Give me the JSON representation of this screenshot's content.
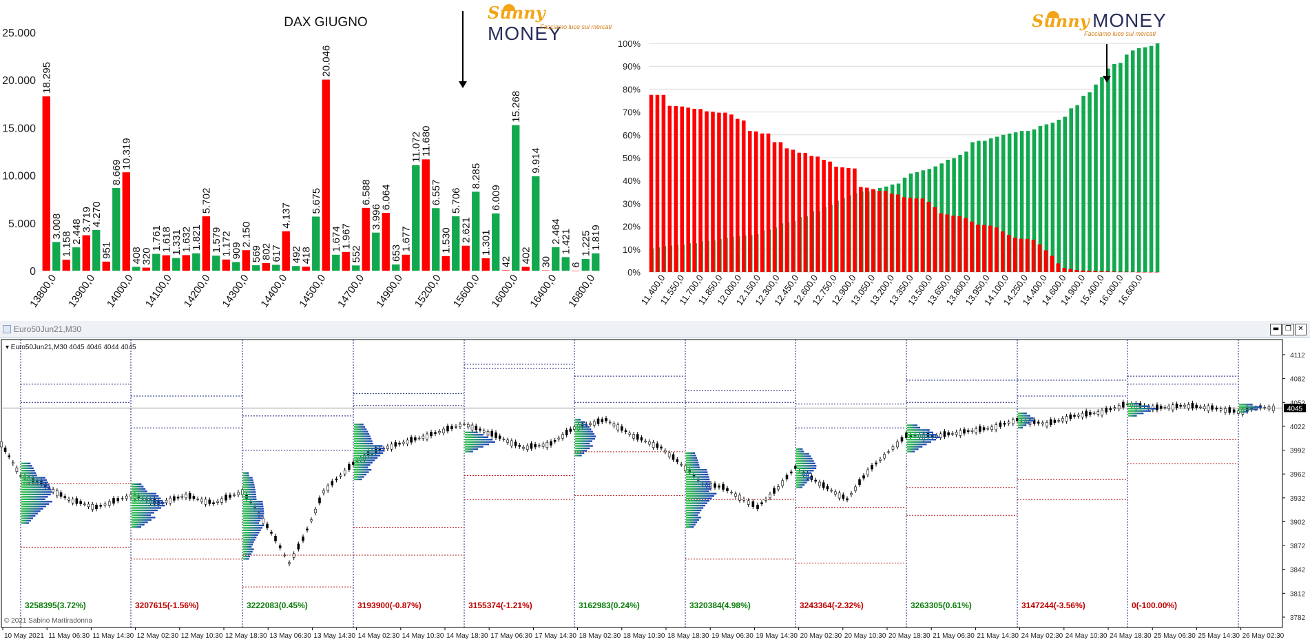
{
  "bar_chart": {
    "title": "DAX GIUGNO",
    "logo": {
      "brand_a": "Sunny",
      "brand_b": "MONEY",
      "tagline": "Facciamo luce sui mercati"
    },
    "chart_data": {
      "type": "bar",
      "title": "DAX GIUGNO",
      "ylim": [
        0,
        25000
      ],
      "yticks": [
        "0",
        "5.000",
        "10.000",
        "15.000",
        "20.000",
        "25.000"
      ],
      "ytick_values": [
        0,
        5000,
        10000,
        15000,
        20000,
        25000
      ],
      "xtick_labels": [
        "13800,0",
        "13900,0",
        "14000,0",
        "14100,0",
        "14200,0",
        "14300,0",
        "14400,0",
        "14500,0",
        "14700,0",
        "14900,0",
        "15200,0",
        "15600,0",
        "16000,0",
        "16400,0",
        "16800,0"
      ],
      "colors": {
        "put": "#ff0000",
        "call": "#12a84e"
      },
      "series": [
        {
          "color": "#ff0000",
          "label": "18.295",
          "value": 18295
        },
        {
          "color": "#12a84e",
          "label": "3.008",
          "value": 3008
        },
        {
          "color": "#ff0000",
          "label": "1.158",
          "value": 1158
        },
        {
          "color": "#12a84e",
          "label": "2.448",
          "value": 2448
        },
        {
          "color": "#ff0000",
          "label": "3.719",
          "value": 3719
        },
        {
          "color": "#12a84e",
          "label": "4.270",
          "value": 4270
        },
        {
          "color": "#ff0000",
          "label": "951",
          "value": 951
        },
        {
          "color": "#12a84e",
          "label": "8.669",
          "value": 8669
        },
        {
          "color": "#ff0000",
          "label": "10.319",
          "value": 10319
        },
        {
          "color": "#12a84e",
          "label": "408",
          "value": 408
        },
        {
          "color": "#ff0000",
          "label": "320",
          "value": 320
        },
        {
          "color": "#12a84e",
          "label": "1.761",
          "value": 1761
        },
        {
          "color": "#ff0000",
          "label": "1.618",
          "value": 1618
        },
        {
          "color": "#12a84e",
          "label": "1.331",
          "value": 1331
        },
        {
          "color": "#ff0000",
          "label": "1.632",
          "value": 1632
        },
        {
          "color": "#12a84e",
          "label": "1.821",
          "value": 1821
        },
        {
          "color": "#ff0000",
          "label": "5.702",
          "value": 5702
        },
        {
          "color": "#12a84e",
          "label": "1.579",
          "value": 1579
        },
        {
          "color": "#ff0000",
          "label": "1.172",
          "value": 1172
        },
        {
          "color": "#12a84e",
          "label": "909",
          "value": 909
        },
        {
          "color": "#ff0000",
          "label": "2.150",
          "value": 2150
        },
        {
          "color": "#12a84e",
          "label": "569",
          "value": 569
        },
        {
          "color": "#ff0000",
          "label": "802",
          "value": 802
        },
        {
          "color": "#12a84e",
          "label": "617",
          "value": 617
        },
        {
          "color": "#ff0000",
          "label": "4.137",
          "value": 4137
        },
        {
          "color": "#12a84e",
          "label": "492",
          "value": 492
        },
        {
          "color": "#ff0000",
          "label": "418",
          "value": 418
        },
        {
          "color": "#12a84e",
          "label": "5.675",
          "value": 5675
        },
        {
          "color": "#ff0000",
          "label": "20.046",
          "value": 20046
        },
        {
          "color": "#12a84e",
          "label": "1.674",
          "value": 1674
        },
        {
          "color": "#ff0000",
          "label": "1.967",
          "value": 1967
        },
        {
          "color": "#12a84e",
          "label": "552",
          "value": 552
        },
        {
          "color": "#ff0000",
          "label": "6.588",
          "value": 6588
        },
        {
          "color": "#12a84e",
          "label": "3.996",
          "value": 3996
        },
        {
          "color": "#ff0000",
          "label": "6.064",
          "value": 6064
        },
        {
          "color": "#12a84e",
          "label": "653",
          "value": 653
        },
        {
          "color": "#ff0000",
          "label": "1.677",
          "value": 1677
        },
        {
          "color": "#12a84e",
          "label": "11.072",
          "value": 11072
        },
        {
          "color": "#ff0000",
          "label": "11.680",
          "value": 11680
        },
        {
          "color": "#12a84e",
          "label": "6.557",
          "value": 6557
        },
        {
          "color": "#ff0000",
          "label": "1.530",
          "value": 1530
        },
        {
          "color": "#12a84e",
          "label": "5.706",
          "value": 5706
        },
        {
          "color": "#ff0000",
          "label": "2.621",
          "value": 2621
        },
        {
          "color": "#12a84e",
          "label": "8.285",
          "value": 8285
        },
        {
          "color": "#ff0000",
          "label": "1.301",
          "value": 1301
        },
        {
          "color": "#12a84e",
          "label": "6.009",
          "value": 6009
        },
        {
          "color": "#ff0000",
          "label": "42",
          "value": 42
        },
        {
          "color": "#12a84e",
          "label": "15.268",
          "value": 15268
        },
        {
          "color": "#ff0000",
          "label": "402",
          "value": 402
        },
        {
          "color": "#12a84e",
          "label": "9.914",
          "value": 9914
        },
        {
          "color": "#ff0000",
          "label": "30",
          "value": 30
        },
        {
          "color": "#12a84e",
          "label": "2.464",
          "value": 2464
        },
        {
          "color": "#12a84e",
          "label": "1.421",
          "value": 1421
        },
        {
          "color": "#ff0000",
          "label": "6",
          "value": 6
        },
        {
          "color": "#12a84e",
          "label": "1.225",
          "value": 1225
        },
        {
          "color": "#12a84e",
          "label": "1.819",
          "value": 1819
        }
      ],
      "annotation": "downward arrow marker near 15600,0"
    }
  },
  "pct_chart": {
    "logo": {
      "brand_a": "Sunny",
      "brand_b": "MONEY",
      "tagline": "Facciamo luce sui mercati"
    },
    "chart_data": {
      "type": "bar",
      "ylim": [
        0,
        100
      ],
      "yticks": [
        "0%",
        "10%",
        "20%",
        "30%",
        "40%",
        "50%",
        "60%",
        "70%",
        "80%",
        "90%",
        "100%"
      ],
      "xtick_labels": [
        "11.400,0",
        "11.550,0",
        "11.700,0",
        "11.850,0",
        "12.000,0",
        "12.150,0",
        "12.300,0",
        "12.450,0",
        "12.600,0",
        "12.750,0",
        "12.900,0",
        "13.050,0",
        "13.200,0",
        "13.350,0",
        "13.500,0",
        "13.650,0",
        "13.800,0",
        "13.950,0",
        "14.100,0",
        "14.250,0",
        "14.400,0",
        "14.600,0",
        "14.900,0",
        "15.400,0",
        "16.000,0",
        "16.600,0"
      ],
      "series": [
        {
          "name": "put",
          "color": "#ff0000",
          "values": [
            77.5,
            77.5,
            77.5,
            72.7,
            72.6,
            72.4,
            71.9,
            71.4,
            71.3,
            70.3,
            70.1,
            69.7,
            69.7,
            68.9,
            67.0,
            66.3,
            61.7,
            61.5,
            60.6,
            60.6,
            56.8,
            56.8,
            54.1,
            53.5,
            52.2,
            52.1,
            50.8,
            50.5,
            49.1,
            48.3,
            46.1,
            45.8,
            45.5,
            45.3,
            37.2,
            36.9,
            36.3,
            35.5,
            35.5,
            34.3,
            33.9,
            32.7,
            32.5,
            32.2,
            32.2,
            30.7,
            28.4,
            25.7,
            25.2,
            24.7,
            24.4,
            23.7,
            22.1,
            20.7,
            20.6,
            20.3,
            19.5,
            17.8,
            16.2,
            15.0,
            14.6,
            14.5,
            14.1,
            12.1,
            9.5,
            7.1,
            3.8,
            1.8,
            1.4,
            0.9,
            0.7,
            0.6,
            0.4,
            0.3,
            0.3,
            0.2,
            0.1,
            0.1,
            0.1,
            0.0,
            0.0,
            0.0,
            0.0
          ]
        },
        {
          "name": "call",
          "color": "#12a84e",
          "values": [
            10.4,
            10.8,
            11.4,
            11.6,
            12.0,
            12.1,
            12.6,
            12.6,
            13.4,
            13.6,
            13.9,
            14.5,
            15.0,
            15.5,
            15.7,
            16.1,
            16.2,
            16.6,
            18.2,
            18.6,
            19.4,
            21.3,
            21.7,
            22.3,
            24.1,
            24.4,
            26.6,
            26.6,
            28.5,
            29.5,
            31.2,
            32.3,
            33.5,
            34.5,
            35.2,
            35.3,
            35.7,
            36.8,
            37.4,
            38.3,
            38.7,
            41.3,
            43.1,
            43.7,
            44.5,
            45.1,
            46.2,
            47.5,
            49.1,
            49.8,
            51.2,
            52.7,
            56.8,
            57.4,
            57.4,
            58.5,
            59.2,
            60.0,
            60.6,
            61.1,
            61.7,
            61.7,
            62.4,
            63.9,
            64.6,
            65.3,
            66.6,
            67.9,
            71.6,
            73.0,
            77.1,
            78.6,
            82.0,
            85.2,
            89.0,
            91.0,
            91.5,
            95.1,
            96.9,
            97.9,
            98.3,
            98.9,
            100.0
          ]
        }
      ]
    }
  },
  "window": {
    "title": "Euro50Jun21,M30",
    "info_line": "Euro50Jun21,M30  4045 4046 4044 4045",
    "price_labels": [
      "4112",
      "4082",
      "4052",
      "4022",
      "3992",
      "3962",
      "3932",
      "3902",
      "3872",
      "3842",
      "3812",
      "3782"
    ],
    "price_values": [
      4112,
      4082,
      4052,
      4022,
      3992,
      3962,
      3932,
      3902,
      3872,
      3842,
      3812,
      3782
    ],
    "current_price": "4045",
    "time_labels": [
      "10 May 2021",
      "11 May 06:30",
      "11 May 14:30",
      "12 May 02:30",
      "12 May 10:30",
      "12 May 18:30",
      "13 May 06:30",
      "13 May 14:30",
      "14 May 02:30",
      "14 May 10:30",
      "14 May 18:30",
      "17 May 06:30",
      "17 May 14:30",
      "18 May 02:30",
      "18 May 10:30",
      "18 May 18:30",
      "19 May 06:30",
      "19 May 14:30",
      "20 May 02:30",
      "20 May 10:30",
      "20 May 18:30",
      "21 May 06:30",
      "21 May 14:30",
      "24 May 02:30",
      "24 May 10:30",
      "24 May 18:30",
      "25 May 06:30",
      "25 May 14:30",
      "26 May 02:30"
    ],
    "volume_labels": [
      {
        "text": "3258395(3.72%)",
        "color": "#0a7d0a"
      },
      {
        "text": "3207615(-1.56%)",
        "color": "#c00000"
      },
      {
        "text": "3222083(0.45%)",
        "color": "#0a7d0a"
      },
      {
        "text": "3193900(-0.87%)",
        "color": "#c00000"
      },
      {
        "text": "3155374(-1.21%)",
        "color": "#c00000"
      },
      {
        "text": "3162983(0.24%)",
        "color": "#0a7d0a"
      },
      {
        "text": "3320384(4.98%)",
        "color": "#0a7d0a"
      },
      {
        "text": "3243364(-2.32%)",
        "color": "#c00000"
      },
      {
        "text": "3263305(0.61%)",
        "color": "#0a7d0a"
      },
      {
        "text": "3147244(-3.56%)",
        "color": "#c00000"
      },
      {
        "text": "0(-100.00%)",
        "color": "#c00000"
      }
    ],
    "copyright": "© 2021 Sabino Martiradonna",
    "buttons": {
      "minimize": "▬",
      "restore": "❐",
      "close": "✕"
    }
  }
}
